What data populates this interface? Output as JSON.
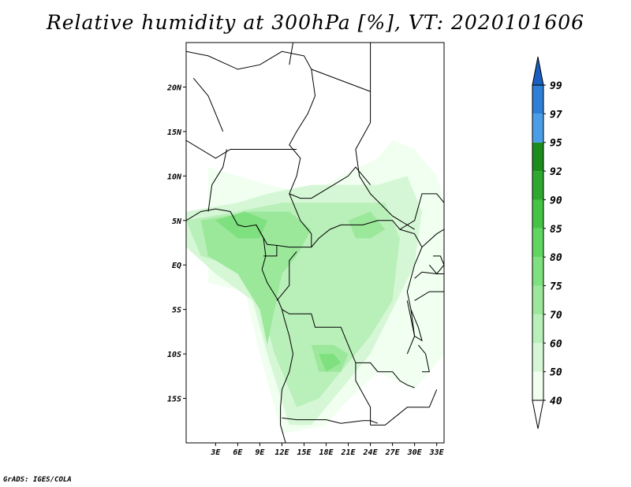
{
  "title": "Relative humidity at 300hPa [%], VT: 2020101606",
  "credit": "GrADS: IGES/COLA",
  "map": {
    "lon_range": [
      -1,
      34
    ],
    "lat_range": [
      -20,
      25
    ],
    "lon_ticks": [
      {
        "value": 3,
        "label": "3E"
      },
      {
        "value": 6,
        "label": "6E"
      },
      {
        "value": 9,
        "label": "9E"
      },
      {
        "value": 12,
        "label": "12E"
      },
      {
        "value": 15,
        "label": "15E"
      },
      {
        "value": 18,
        "label": "18E"
      },
      {
        "value": 21,
        "label": "21E"
      },
      {
        "value": 24,
        "label": "24E"
      },
      {
        "value": 27,
        "label": "27E"
      },
      {
        "value": 30,
        "label": "30E"
      },
      {
        "value": 33,
        "label": "33E"
      }
    ],
    "lat_ticks": [
      {
        "value": 20,
        "label": "20N"
      },
      {
        "value": 15,
        "label": "15N"
      },
      {
        "value": 10,
        "label": "10N"
      },
      {
        "value": 5,
        "label": "5N"
      },
      {
        "value": 0,
        "label": "EQ"
      },
      {
        "value": -5,
        "label": "5S"
      },
      {
        "value": -10,
        "label": "10S"
      },
      {
        "value": -15,
        "label": "15S"
      }
    ]
  },
  "colorbar": {
    "bins": [
      {
        "value": 40,
        "label": "40",
        "color": "#f0fff0"
      },
      {
        "value": 50,
        "label": "50",
        "color": "#d6f7d6"
      },
      {
        "value": 60,
        "label": "60",
        "color": "#b9efb9"
      },
      {
        "value": 70,
        "label": "70",
        "color": "#9be89b"
      },
      {
        "value": 75,
        "label": "75",
        "color": "#7ee07e"
      },
      {
        "value": 80,
        "label": "80",
        "color": "#5fd65f"
      },
      {
        "value": 85,
        "label": "85",
        "color": "#45c345"
      },
      {
        "value": 90,
        "label": "90",
        "color": "#2ea82e"
      },
      {
        "value": 92,
        "label": "92",
        "color": "#1c8c1c"
      },
      {
        "value": 95,
        "label": "95",
        "color": "#4a9ee8"
      },
      {
        "value": 97,
        "label": "97",
        "color": "#2d7fd8"
      },
      {
        "value": 99,
        "label": "99",
        "color": "#1a5fc0"
      }
    ],
    "below_color": "#ffffff",
    "above_color": "#1a5fc0"
  },
  "humidity_areas": [
    {
      "level": 40,
      "points": [
        [
          2,
          11
        ],
        [
          10,
          9
        ],
        [
          16,
          8
        ],
        [
          20,
          10
        ],
        [
          25,
          12
        ],
        [
          27,
          14
        ],
        [
          30,
          13
        ],
        [
          33,
          10
        ],
        [
          34,
          7
        ],
        [
          34,
          -10
        ],
        [
          30,
          -14
        ],
        [
          25,
          -12
        ],
        [
          20,
          -16
        ],
        [
          18,
          -18
        ],
        [
          12,
          -19
        ],
        [
          9,
          -10
        ],
        [
          7,
          -3
        ],
        [
          2,
          -2
        ]
      ]
    },
    {
      "level": 50,
      "points": [
        [
          -1,
          6
        ],
        [
          6,
          7
        ],
        [
          10,
          8
        ],
        [
          16,
          9
        ],
        [
          20,
          9
        ],
        [
          25,
          9
        ],
        [
          29,
          10
        ],
        [
          31,
          6
        ],
        [
          30,
          0
        ],
        [
          27,
          -5
        ],
        [
          24,
          -10
        ],
        [
          20,
          -14
        ],
        [
          16,
          -18
        ],
        [
          13,
          -18
        ],
        [
          10,
          -10
        ],
        [
          8,
          -4
        ],
        [
          3,
          -1
        ],
        [
          -1,
          2
        ]
      ]
    },
    {
      "level": 60,
      "points": [
        [
          -1,
          5
        ],
        [
          6,
          6
        ],
        [
          12,
          7
        ],
        [
          20,
          7
        ],
        [
          26,
          7
        ],
        [
          28,
          3
        ],
        [
          27,
          -4
        ],
        [
          24,
          -8
        ],
        [
          21,
          -11
        ],
        [
          17,
          -15
        ],
        [
          14,
          -16
        ],
        [
          11,
          -10
        ],
        [
          9,
          -4
        ],
        [
          5,
          0
        ],
        [
          1,
          1
        ]
      ]
    },
    {
      "level": 70,
      "points": [
        [
          1,
          5
        ],
        [
          8,
          6
        ],
        [
          13,
          6
        ],
        [
          16,
          4
        ],
        [
          14,
          1
        ],
        [
          12,
          -1
        ],
        [
          11,
          -5
        ],
        [
          10,
          -9
        ],
        [
          9,
          -5
        ],
        [
          6,
          -1
        ],
        [
          2,
          1
        ]
      ]
    },
    {
      "level": 70,
      "points": [
        [
          16,
          -9
        ],
        [
          19,
          -9
        ],
        [
          21,
          -10
        ],
        [
          20,
          -12
        ],
        [
          17,
          -12
        ]
      ]
    },
    {
      "level": 70,
      "points": [
        [
          21,
          5
        ],
        [
          24,
          6
        ],
        [
          26,
          4
        ],
        [
          24,
          3
        ],
        [
          22,
          3
        ]
      ]
    },
    {
      "level": 75,
      "points": [
        [
          3,
          5
        ],
        [
          7,
          6
        ],
        [
          10,
          5
        ],
        [
          9,
          3
        ],
        [
          6,
          3
        ]
      ]
    },
    {
      "level": 75,
      "points": [
        [
          17,
          -10
        ],
        [
          19,
          -10
        ],
        [
          20,
          -11
        ],
        [
          18,
          -12
        ]
      ]
    }
  ],
  "borders": [
    [
      [
        -1,
        24
      ],
      [
        2,
        23.5
      ],
      [
        6,
        22
      ],
      [
        9,
        22.5
      ],
      [
        12,
        24
      ],
      [
        15,
        23.5
      ],
      [
        16,
        22
      ]
    ],
    [
      [
        16,
        22
      ],
      [
        16.5,
        19
      ],
      [
        15.5,
        17
      ],
      [
        14,
        15
      ],
      [
        13,
        13.5
      ],
      [
        14.5,
        12
      ],
      [
        14,
        10
      ],
      [
        13,
        8
      ]
    ],
    [
      [
        16,
        22
      ],
      [
        24,
        19.5
      ],
      [
        24,
        16
      ],
      [
        22,
        13
      ],
      [
        22.5,
        10
      ],
      [
        24,
        8
      ],
      [
        27,
        5.5
      ],
      [
        30,
        4
      ]
    ],
    [
      [
        13.5,
        25
      ],
      [
        13,
        22.5
      ]
    ],
    [
      [
        24,
        19.5
      ],
      [
        24,
        25
      ]
    ],
    [
      [
        -1,
        14
      ],
      [
        3,
        12
      ],
      [
        5,
        13
      ],
      [
        9,
        13
      ],
      [
        12,
        13
      ],
      [
        14,
        13
      ]
    ],
    [
      [
        2,
        6
      ],
      [
        2.5,
        9
      ],
      [
        4,
        11
      ],
      [
        4.5,
        13
      ]
    ],
    [
      [
        4,
        15
      ],
      [
        3,
        17
      ],
      [
        2,
        19
      ],
      [
        0,
        21
      ]
    ],
    [
      [
        13,
        8
      ],
      [
        14.5,
        7.5
      ],
      [
        16,
        7.5
      ],
      [
        19,
        9
      ],
      [
        21,
        10
      ],
      [
        22,
        11
      ],
      [
        24,
        9
      ]
    ],
    [
      [
        8.5,
        4.5
      ],
      [
        10,
        2.3
      ],
      [
        11.3,
        2.2
      ],
      [
        13,
        2
      ],
      [
        16,
        2
      ],
      [
        16,
        3.5
      ],
      [
        14.5,
        5
      ],
      [
        13,
        8
      ]
    ],
    [
      [
        9.5,
        1
      ],
      [
        11.3,
        1
      ],
      [
        11.3,
        2.2
      ]
    ],
    [
      [
        11.3,
        -4
      ],
      [
        13,
        -2.3
      ],
      [
        13,
        0.5
      ],
      [
        14,
        1.5
      ]
    ],
    [
      [
        16,
        2
      ],
      [
        17,
        3
      ],
      [
        18.5,
        4
      ],
      [
        20,
        4.5
      ],
      [
        23,
        4.5
      ],
      [
        25,
        5
      ],
      [
        27,
        5
      ],
      [
        28,
        4
      ],
      [
        30,
        3.5
      ],
      [
        31,
        2
      ],
      [
        30,
        0
      ],
      [
        29.5,
        -1.5
      ],
      [
        29,
        -3
      ],
      [
        29.5,
        -5
      ],
      [
        30,
        -8
      ],
      [
        29,
        -10
      ]
    ],
    [
      [
        12,
        -5
      ],
      [
        13,
        -5.5
      ],
      [
        16,
        -5.5
      ],
      [
        16.5,
        -7
      ],
      [
        19,
        -7
      ],
      [
        20,
        -7
      ],
      [
        21,
        -9
      ],
      [
        22,
        -11
      ],
      [
        24,
        -11
      ],
      [
        25,
        -12
      ],
      [
        27,
        -12
      ],
      [
        28,
        -13
      ],
      [
        29,
        -13.5
      ],
      [
        30,
        -13.8
      ]
    ],
    [
      [
        12,
        -17.2
      ],
      [
        14,
        -17.4
      ],
      [
        18,
        -17.4
      ],
      [
        20,
        -17.8
      ],
      [
        23,
        -17.5
      ],
      [
        24,
        -17.5
      ],
      [
        25,
        -17.8
      ]
    ],
    [
      [
        22,
        -11
      ],
      [
        22,
        -13
      ],
      [
        24,
        -16
      ],
      [
        24,
        -18
      ]
    ],
    [
      [
        24,
        -18
      ],
      [
        26,
        -18
      ],
      [
        29,
        -16
      ],
      [
        32,
        -16
      ],
      [
        33,
        -14
      ]
    ],
    [
      [
        30,
        -4
      ],
      [
        32,
        -3
      ],
      [
        34,
        -3
      ]
    ],
    [
      [
        30,
        -1.5
      ],
      [
        31,
        -0.8
      ],
      [
        33,
        -1
      ],
      [
        34,
        -1
      ]
    ],
    [
      [
        31,
        2
      ],
      [
        33,
        3.5
      ],
      [
        34,
        4
      ]
    ],
    [
      [
        28,
        4
      ],
      [
        30,
        5
      ],
      [
        31,
        8
      ],
      [
        33,
        8
      ],
      [
        34,
        7
      ]
    ]
  ],
  "coastline": [
    [
      [
        -1,
        5
      ],
      [
        1,
        6
      ],
      [
        3,
        6.3
      ],
      [
        5,
        6
      ],
      [
        6,
        4.5
      ],
      [
        7,
        4.3
      ],
      [
        8.5,
        4.5
      ],
      [
        9.5,
        3
      ],
      [
        9.8,
        1
      ],
      [
        9.3,
        -0.5
      ],
      [
        10,
        -2
      ],
      [
        11.5,
        -4
      ],
      [
        12,
        -5
      ],
      [
        12.3,
        -6
      ],
      [
        13,
        -8
      ],
      [
        13.5,
        -10
      ],
      [
        13,
        -12
      ],
      [
        12,
        -14
      ],
      [
        11.8,
        -16
      ],
      [
        11.8,
        -18
      ],
      [
        12.5,
        -20
      ]
    ],
    [
      [
        29,
        -4
      ],
      [
        29.5,
        -6
      ],
      [
        30,
        -8
      ],
      [
        31,
        -8.5
      ],
      [
        30.5,
        -7
      ],
      [
        29.5,
        -5
      ]
    ],
    [
      [
        32,
        0
      ],
      [
        33,
        -1
      ],
      [
        34,
        0
      ],
      [
        33.5,
        1
      ],
      [
        32.5,
        1
      ]
    ],
    [
      [
        30.5,
        -9
      ],
      [
        31.5,
        -10
      ],
      [
        32,
        -12
      ],
      [
        31,
        -12
      ]
    ]
  ]
}
